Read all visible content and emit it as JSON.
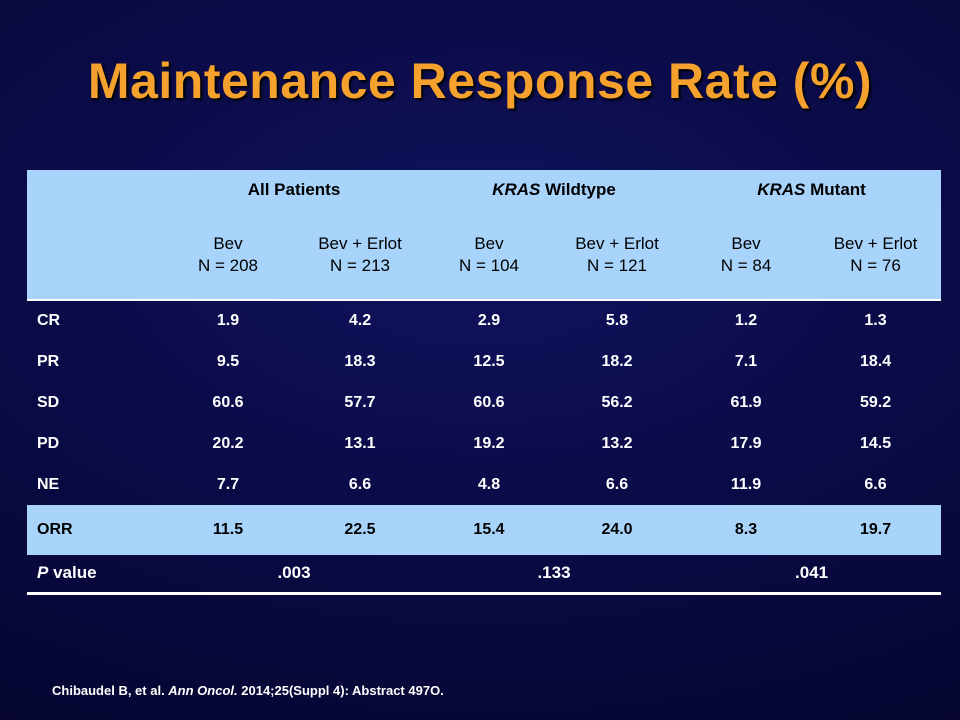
{
  "title": "Maintenance Response Rate (%)",
  "table": {
    "groups": [
      {
        "prefix": "",
        "label": "All Patients"
      },
      {
        "prefix": "KRAS",
        "label": " Wildtype"
      },
      {
        "prefix": "KRAS",
        "label": " Mutant"
      }
    ],
    "columns": [
      {
        "arm": "Bev",
        "n": "N = 208"
      },
      {
        "arm": "Bev + Erlot",
        "n": "N = 213"
      },
      {
        "arm": "Bev",
        "n": "N = 104"
      },
      {
        "arm": "Bev + Erlot",
        "n": "N = 121"
      },
      {
        "arm": "Bev",
        "n": "N = 84"
      },
      {
        "arm": "Bev + Erlot",
        "n": "N = 76"
      }
    ],
    "rows": [
      {
        "label": "CR",
        "values": [
          "1.9",
          "4.2",
          "2.9",
          "5.8",
          "1.2",
          "1.3"
        ]
      },
      {
        "label": "PR",
        "values": [
          "9.5",
          "18.3",
          "12.5",
          "18.2",
          "7.1",
          "18.4"
        ]
      },
      {
        "label": "SD",
        "values": [
          "60.6",
          "57.7",
          "60.6",
          "56.2",
          "61.9",
          "59.2"
        ]
      },
      {
        "label": "PD",
        "values": [
          "20.2",
          "13.1",
          "19.2",
          "13.2",
          "17.9",
          "14.5"
        ]
      },
      {
        "label": "NE",
        "values": [
          "7.7",
          "6.6",
          "4.8",
          "6.6",
          "11.9",
          "6.6"
        ]
      }
    ],
    "orr": {
      "label": "ORR",
      "values": [
        "11.5",
        "22.5",
        "15.4",
        "24.0",
        "8.3",
        "19.7"
      ]
    },
    "pvalue": {
      "label_italic": "P",
      "label_rest": " value",
      "values": [
        ".003",
        ".133",
        ".041"
      ]
    }
  },
  "footer": {
    "authors": "Chibaudel B, et al. ",
    "journal": "Ann Oncol.",
    "rest": " 2014;25(Suppl 4): Abstract 497O."
  },
  "colors": {
    "title": "#f5a12e",
    "header_bg": "#a8d4fb",
    "background": "#0a0a45"
  }
}
